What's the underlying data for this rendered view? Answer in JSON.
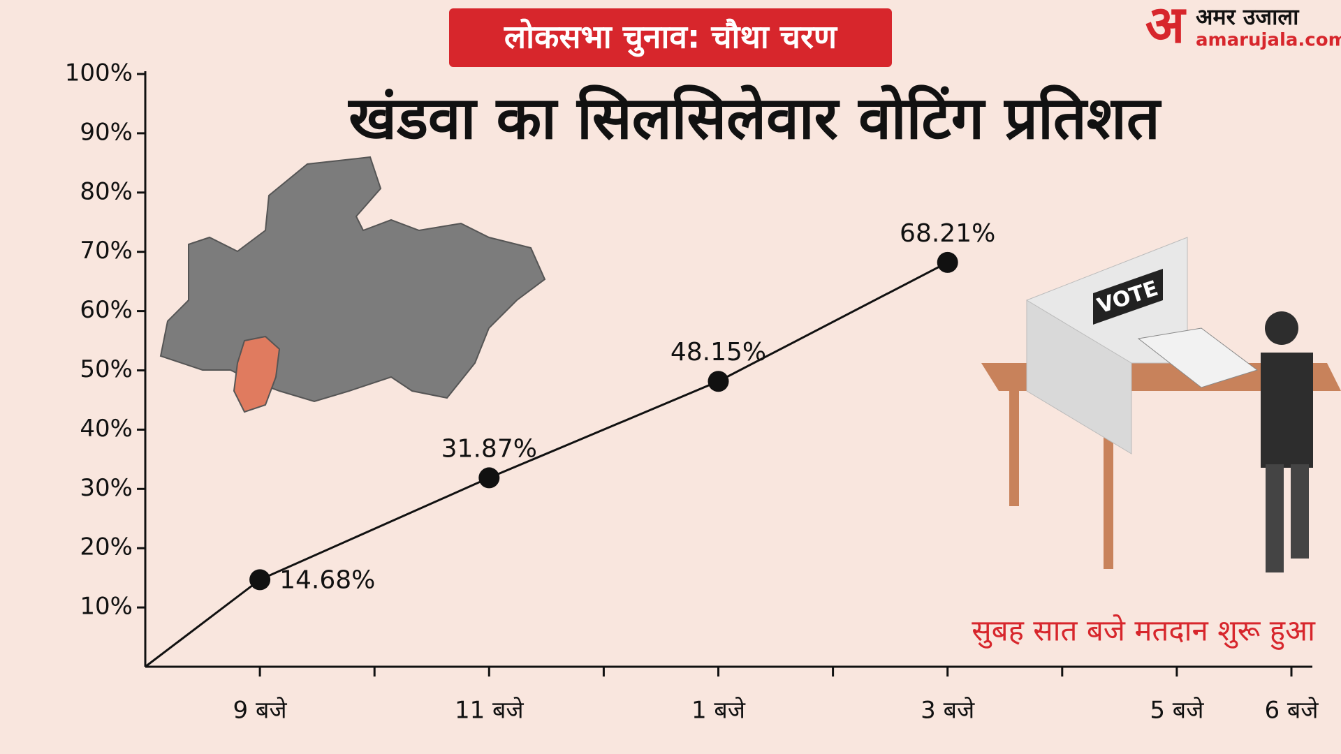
{
  "chart_data": {
    "type": "line",
    "badge": "लोकसभा चुनाव: चौथा चरण",
    "title": "खंडवा का सिलसिलेवार वोटिंग प्रतिशत",
    "annotation": "सुबह सात बजे मतदान शुरू हुआ",
    "x": [
      8,
      9,
      11,
      13,
      15
    ],
    "values": [
      0,
      14.68,
      31.87,
      48.15,
      68.21
    ],
    "value_labels": [
      null,
      "14.68%",
      "31.87%",
      "48.15%",
      "68.21%"
    ],
    "color": "#111111",
    "xlim": [
      8,
      18
    ],
    "xticks": [
      {
        "value": 9,
        "label": "9 बजे"
      },
      {
        "value": 10,
        "label": null
      },
      {
        "value": 11,
        "label": "11 बजे"
      },
      {
        "value": 12,
        "label": null
      },
      {
        "value": 13,
        "label": "1 बजे"
      },
      {
        "value": 14,
        "label": null
      },
      {
        "value": 15,
        "label": "3 बजे"
      },
      {
        "value": 16,
        "label": null
      },
      {
        "value": 17,
        "label": "5 बजे"
      },
      {
        "value": 18,
        "label": "6 बजे"
      }
    ],
    "ylim": [
      0,
      100
    ],
    "yticks": [
      {
        "value": 10,
        "label": "10%"
      },
      {
        "value": 20,
        "label": "20%"
      },
      {
        "value": 30,
        "label": "30%"
      },
      {
        "value": 40,
        "label": "40%"
      },
      {
        "value": 50,
        "label": "50%"
      },
      {
        "value": 60,
        "label": "60%"
      },
      {
        "value": 70,
        "label": "70%"
      },
      {
        "value": 80,
        "label": "80%"
      },
      {
        "value": 90,
        "label": "90%"
      },
      {
        "value": 100,
        "label": "100%"
      }
    ]
  },
  "logo": {
    "mark": "अ",
    "name": "अमर उजाला",
    "site": "amarujala.com"
  },
  "illustration": {
    "sign": "VOTE"
  }
}
